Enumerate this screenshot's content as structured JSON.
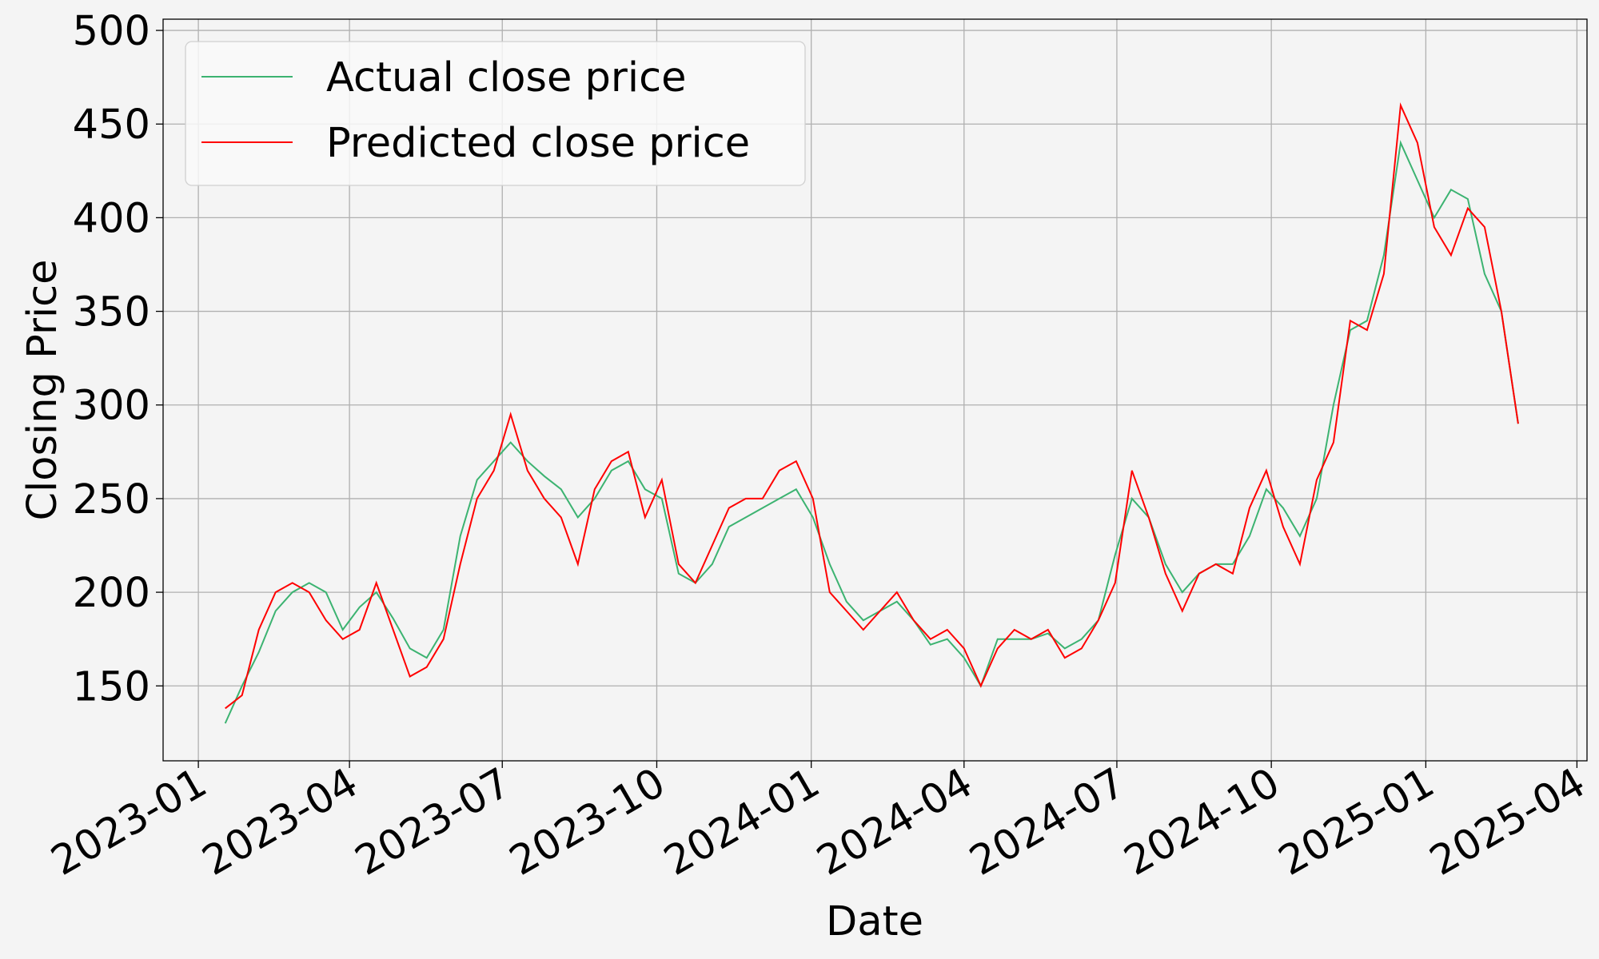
{
  "chart_data": {
    "type": "line",
    "xlabel": "Date",
    "ylabel": "Closing Price",
    "x": [
      16,
      26,
      36,
      46,
      56,
      66,
      76,
      86,
      96,
      106,
      116,
      126,
      136,
      146,
      156,
      166,
      176,
      186,
      196,
      206,
      216,
      226,
      236,
      246,
      256,
      266,
      276,
      286,
      296,
      306,
      316,
      326,
      336,
      346,
      356,
      366,
      376,
      386,
      396,
      406,
      416,
      426,
      436,
      446,
      456,
      466,
      476,
      486,
      496,
      506,
      516,
      526,
      536,
      546,
      556,
      566,
      576,
      586,
      596,
      606,
      616,
      626,
      636,
      646,
      656,
      666,
      676,
      686,
      696,
      706,
      716,
      726,
      736,
      746,
      756,
      766,
      776,
      786
    ],
    "series": [
      {
        "name": "Actual close price",
        "color": "#3cb371",
        "values": [
          130,
          150,
          168,
          190,
          200,
          205,
          200,
          180,
          192,
          200,
          186,
          170,
          165,
          180,
          230,
          260,
          270,
          280,
          270,
          262,
          255,
          240,
          250,
          265,
          270,
          255,
          250,
          210,
          205,
          215,
          235,
          240,
          245,
          250,
          255,
          240,
          215,
          195,
          185,
          190,
          195,
          185,
          172,
          175,
          165,
          150,
          175,
          175,
          175,
          178,
          170,
          175,
          185,
          220,
          250,
          240,
          215,
          200,
          210,
          215,
          215,
          230,
          255,
          245,
          230,
          250,
          300,
          340,
          345,
          380,
          440,
          420,
          400,
          415,
          410,
          370,
          350,
          290
        ]
      },
      {
        "name": "Predicted close price",
        "color": "#ff0000",
        "values": [
          138,
          145,
          180,
          200,
          205,
          200,
          185,
          175,
          180,
          205,
          180,
          155,
          160,
          175,
          215,
          250,
          265,
          295,
          265,
          250,
          240,
          215,
          255,
          270,
          275,
          240,
          260,
          215,
          205,
          225,
          245,
          250,
          250,
          265,
          270,
          250,
          200,
          190,
          180,
          190,
          200,
          185,
          175,
          180,
          170,
          150,
          170,
          180,
          175,
          180,
          165,
          170,
          185,
          205,
          265,
          240,
          210,
          190,
          210,
          215,
          210,
          245,
          265,
          235,
          215,
          260,
          280,
          345,
          340,
          370,
          460,
          440,
          395,
          380,
          405,
          395,
          350,
          290
        ]
      }
    ],
    "xlim": [
      -21,
      827
    ],
    "xticks": [
      {
        "value": 0,
        "label": "2023-01"
      },
      {
        "value": 90,
        "label": "2023-04"
      },
      {
        "value": 181,
        "label": "2023-07"
      },
      {
        "value": 273,
        "label": "2023-10"
      },
      {
        "value": 365,
        "label": "2024-01"
      },
      {
        "value": 456,
        "label": "2024-04"
      },
      {
        "value": 547,
        "label": "2024-07"
      },
      {
        "value": 639,
        "label": "2024-10"
      },
      {
        "value": 731,
        "label": "2025-01"
      },
      {
        "value": 821,
        "label": "2025-04"
      }
    ],
    "ylim": [
      110,
      506
    ],
    "yticks": [
      150,
      200,
      250,
      300,
      350,
      400,
      450,
      500
    ],
    "grid": true,
    "legend": "upper left"
  }
}
